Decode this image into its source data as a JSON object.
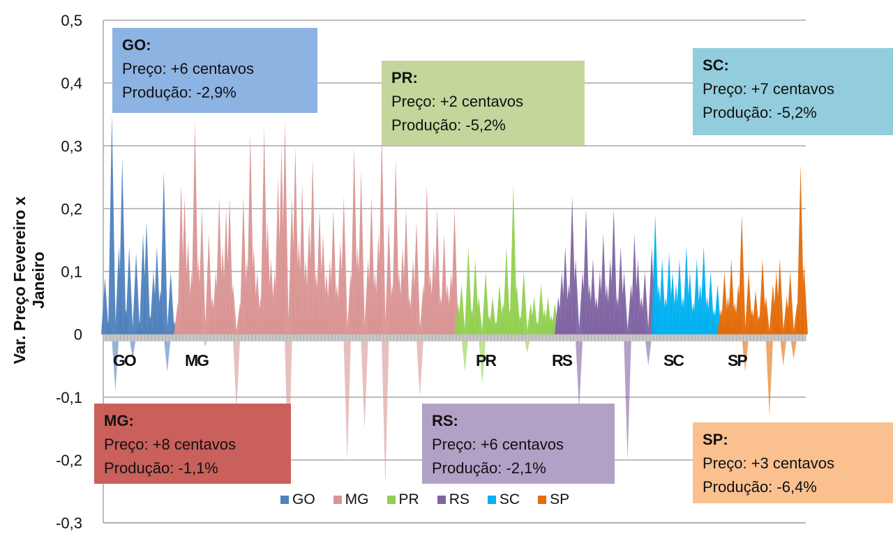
{
  "chart_data": {
    "type": "area",
    "ylabel": "Var. Preço Fevereiro  x Janeiro",
    "ylim": [
      -0.3,
      0.5
    ],
    "yticks": [
      0.5,
      0.4,
      0.3,
      0.2,
      0.1,
      0,
      -0.1,
      -0.2,
      -0.3
    ],
    "ytick_labels": [
      "0,5",
      "0,4",
      "0,3",
      "0,2",
      "0,1",
      "0",
      "-0,1",
      "-0,2",
      "-0,3"
    ],
    "grid": true,
    "legend_position": "bottom",
    "category_labels": [
      "GO",
      "MG",
      "PR",
      "RS",
      "SC",
      "SP"
    ],
    "series": [
      {
        "name": "GO",
        "color": "#4f81bd",
        "values": [
          0.09,
          0.02,
          0.35,
          -0.09,
          0.14,
          0.28,
          0.04,
          0.14,
          -0.04,
          0.13,
          0.02,
          0.16,
          0.18,
          0.03,
          0.1,
          0.14,
          0.07,
          0.26,
          -0.06,
          0.1,
          0.02
        ]
      },
      {
        "name": "MG",
        "color": "#d99594",
        "values": [
          0.05,
          0.24,
          0.22,
          0.15,
          0.1,
          0.34,
          0.12,
          0.2,
          -0.02,
          0.16,
          0.06,
          0.1,
          0.22,
          0.14,
          0.2,
          0.22,
          0.08,
          -0.12,
          0.05,
          0.22,
          0.12,
          0.32,
          0.14,
          0.1,
          0.06,
          0.33,
          0.18,
          0.12,
          0.1,
          0.25,
          0.3,
          0.34,
          -0.23,
          0.22,
          0.3,
          0.15,
          0.24,
          0.12,
          0.18,
          0.28,
          0.1,
          0.2,
          0.16,
          0.1,
          0.12,
          0.2,
          0.08,
          0.15,
          0.22,
          -0.2,
          0.1,
          0.3,
          0.14,
          0.26,
          -0.15,
          0.12,
          0.22,
          0.1,
          0.16,
          0.32,
          -0.24,
          0.18,
          0.08,
          0.28,
          0.1,
          0.14,
          0.2,
          0.06,
          0.12,
          0.18,
          -0.1,
          0.08,
          0.24,
          0.1,
          0.14,
          0.2,
          0.06,
          0.16,
          0.08,
          0.1,
          0.2
        ]
      },
      {
        "name": "PR",
        "color": "#92d050",
        "values": [
          0.05,
          0.08,
          -0.06,
          0.14,
          0.04,
          0.12,
          0.06,
          -0.08,
          0.1,
          0.03,
          0.06,
          0.02,
          0.08,
          0.05,
          0.14,
          0.04,
          0.24,
          0.08,
          0.03,
          0.1,
          -0.03,
          0.05,
          0.06,
          0.02,
          0.08,
          0.04,
          0.06,
          0.03,
          0.05
        ]
      },
      {
        "name": "RS",
        "color": "#8064a2",
        "values": [
          0.06,
          0.1,
          0.14,
          0.08,
          0.22,
          0.12,
          -0.12,
          0.1,
          0.2,
          0.08,
          0.12,
          0.06,
          0.1,
          0.16,
          0.08,
          0.12,
          0.2,
          0.06,
          0.14,
          0.1,
          -0.2,
          0.08,
          0.16,
          0.12,
          0.06,
          0.1,
          -0.05,
          0.14
        ]
      },
      {
        "name": "SC",
        "color": "#00b0f0",
        "values": [
          0.19,
          0.08,
          0.12,
          0.06,
          0.13,
          0.1,
          0.08,
          0.12,
          0.06,
          0.14,
          0.1,
          0.05,
          0.12,
          0.08,
          0.14,
          0.06,
          0.1,
          0.04,
          0.08
        ]
      },
      {
        "name": "SP",
        "color": "#e36c09",
        "values": [
          0.04,
          0.1,
          0.06,
          0.12,
          0.05,
          0.08,
          0.19,
          -0.06,
          0.1,
          0.04,
          0.07,
          0.03,
          0.12,
          0.06,
          -0.13,
          0.08,
          0.1,
          0.12,
          -0.05,
          0.06,
          0.1,
          -0.04,
          0.05,
          0.27,
          0.11
        ]
      }
    ]
  },
  "annotations": [
    {
      "title": "GO:",
      "price": "Preço:  +6 centavos",
      "production": "Produção:  -2,9%",
      "color": "#8db3e2"
    },
    {
      "title": "PR:",
      "price": "Preço:  +2 centavos",
      "production": "Produção:  -5,2%",
      "color": "#c3d69b"
    },
    {
      "title": "SC:",
      "price": "Preço:  +7 centavos",
      "production": "Produção:  -5,2%",
      "color": "#93cddd"
    },
    {
      "title": "MG:",
      "price": "Preço:  +8 centavos",
      "production": "Produção:  -1,1%",
      "color": "#c9605c"
    },
    {
      "title": "RS:",
      "price": "Preço:  +6 centavos",
      "production": "Produção:  -2,1%",
      "color": "#b2a1c7"
    },
    {
      "title": "SP:",
      "price": "Preço:  +3 centavos",
      "production": "Produção:  -6,4%",
      "color": "#fac090"
    }
  ]
}
